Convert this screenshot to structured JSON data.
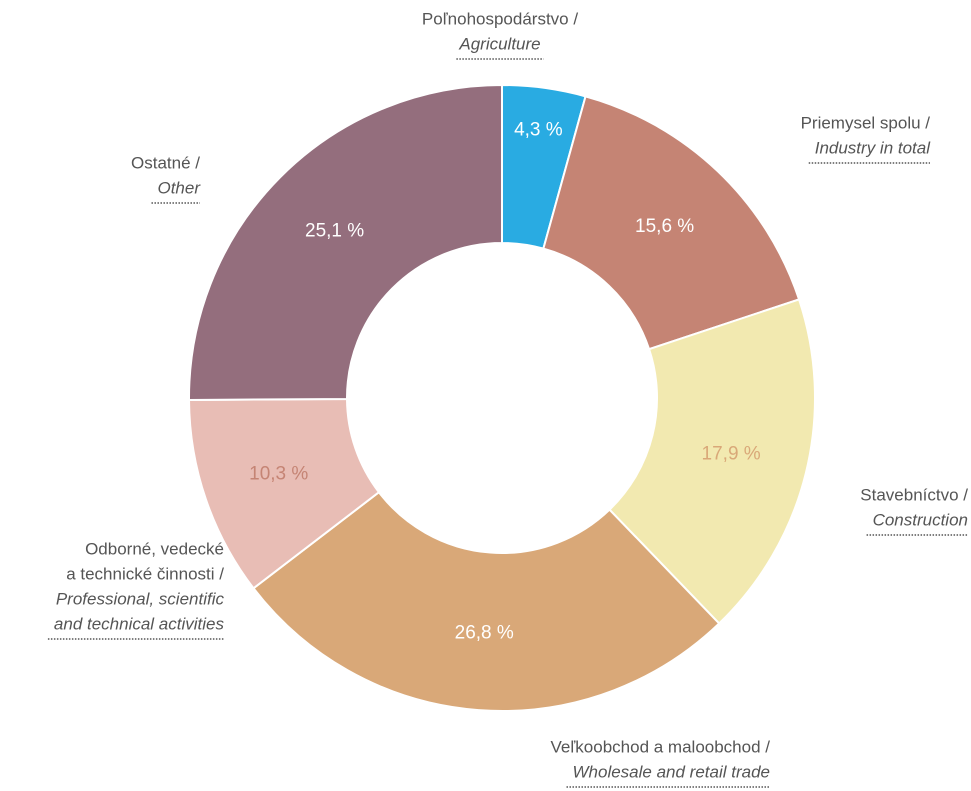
{
  "chart_data": {
    "type": "donut",
    "categories": [
      {
        "sk": [
          "Poľnohospodárstvo /"
        ],
        "en": [
          "Agriculture"
        ]
      },
      {
        "sk": [
          "Priemysel spolu /"
        ],
        "en": [
          "Industry in total"
        ]
      },
      {
        "sk": [
          "Stavebníctvo /"
        ],
        "en": [
          "Construction"
        ]
      },
      {
        "sk": [
          "Veľkoobchod a maloobchod /"
        ],
        "en": [
          "Wholesale and retail trade"
        ]
      },
      {
        "sk": [
          "Odborné, vedecké",
          "a technické činnosti /"
        ],
        "en": [
          "Professional, scientific",
          "and technical activities"
        ]
      },
      {
        "sk": [
          "Ostatné /"
        ],
        "en": [
          "Other"
        ]
      }
    ],
    "values": [
      4.3,
      15.6,
      17.9,
      26.8,
      10.3,
      25.1
    ],
    "value_labels": [
      "4,3 %",
      "15,6 %",
      "17,9 %",
      "26,8 %",
      "10,3 %",
      "25,1 %"
    ],
    "colors": [
      "#29abe2",
      "#c58474",
      "#f2e9b0",
      "#d9a878",
      "#e8bdb5",
      "#946e7d"
    ],
    "label_colors": [
      "#ffffff",
      "#ffffff",
      "#d9a878",
      "#ffffff",
      "#c58474",
      "#ffffff"
    ]
  }
}
